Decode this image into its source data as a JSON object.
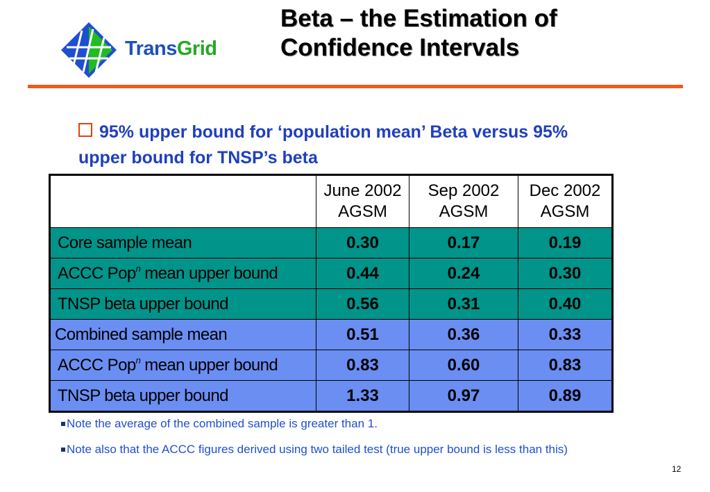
{
  "logo": {
    "text_trans": "Trans",
    "text_grid": "Grid"
  },
  "title": {
    "line1": "Beta – the Estimation of",
    "line2": "Confidence Intervals"
  },
  "bullet": "95% upper bound for ‘population mean’ Beta versus 95% upper bound for TNSP’s beta",
  "table": {
    "headers": [
      {
        "line1": "June 2002",
        "line2": "AGSM"
      },
      {
        "line1": "Sep 2002",
        "line2": "AGSM"
      },
      {
        "line1": "Dec 2002",
        "line2": "AGSM"
      }
    ],
    "rows": [
      {
        "label": "Core sample mean",
        "values": [
          "0.30",
          "0.17",
          "0.19"
        ]
      },
      {
        "label_pre": "ACCC Pop",
        "label_sup": "n",
        "label_post": " mean upper bound",
        "values": [
          "0.44",
          "0.24",
          "0.30"
        ]
      },
      {
        "label": "TNSP beta upper bound",
        "values": [
          "0.56",
          "0.31",
          "0.40"
        ]
      },
      {
        "label": "Combined sample mean",
        "values": [
          "0.51",
          "0.36",
          "0.33"
        ]
      },
      {
        "label_pre": "ACCC Pop",
        "label_sup": "n",
        "label_post": " mean upper bound",
        "values": [
          "0.83",
          "0.60",
          "0.83"
        ]
      },
      {
        "label": "TNSP beta upper bound",
        "values": [
          "1.33",
          "0.97",
          "0.89"
        ]
      }
    ]
  },
  "notes": [
    "Note the average of the combined sample is greater than 1.",
    "Note also that the ACCC figures derived using two tailed test (true upper bound is less than this)"
  ],
  "page_number": "12",
  "colors": {
    "accent_rule": "#f05a1a",
    "teal_rows": "#00948a",
    "blue_rows": "#6a8ef2",
    "text_blue": "#1f3fbf"
  }
}
